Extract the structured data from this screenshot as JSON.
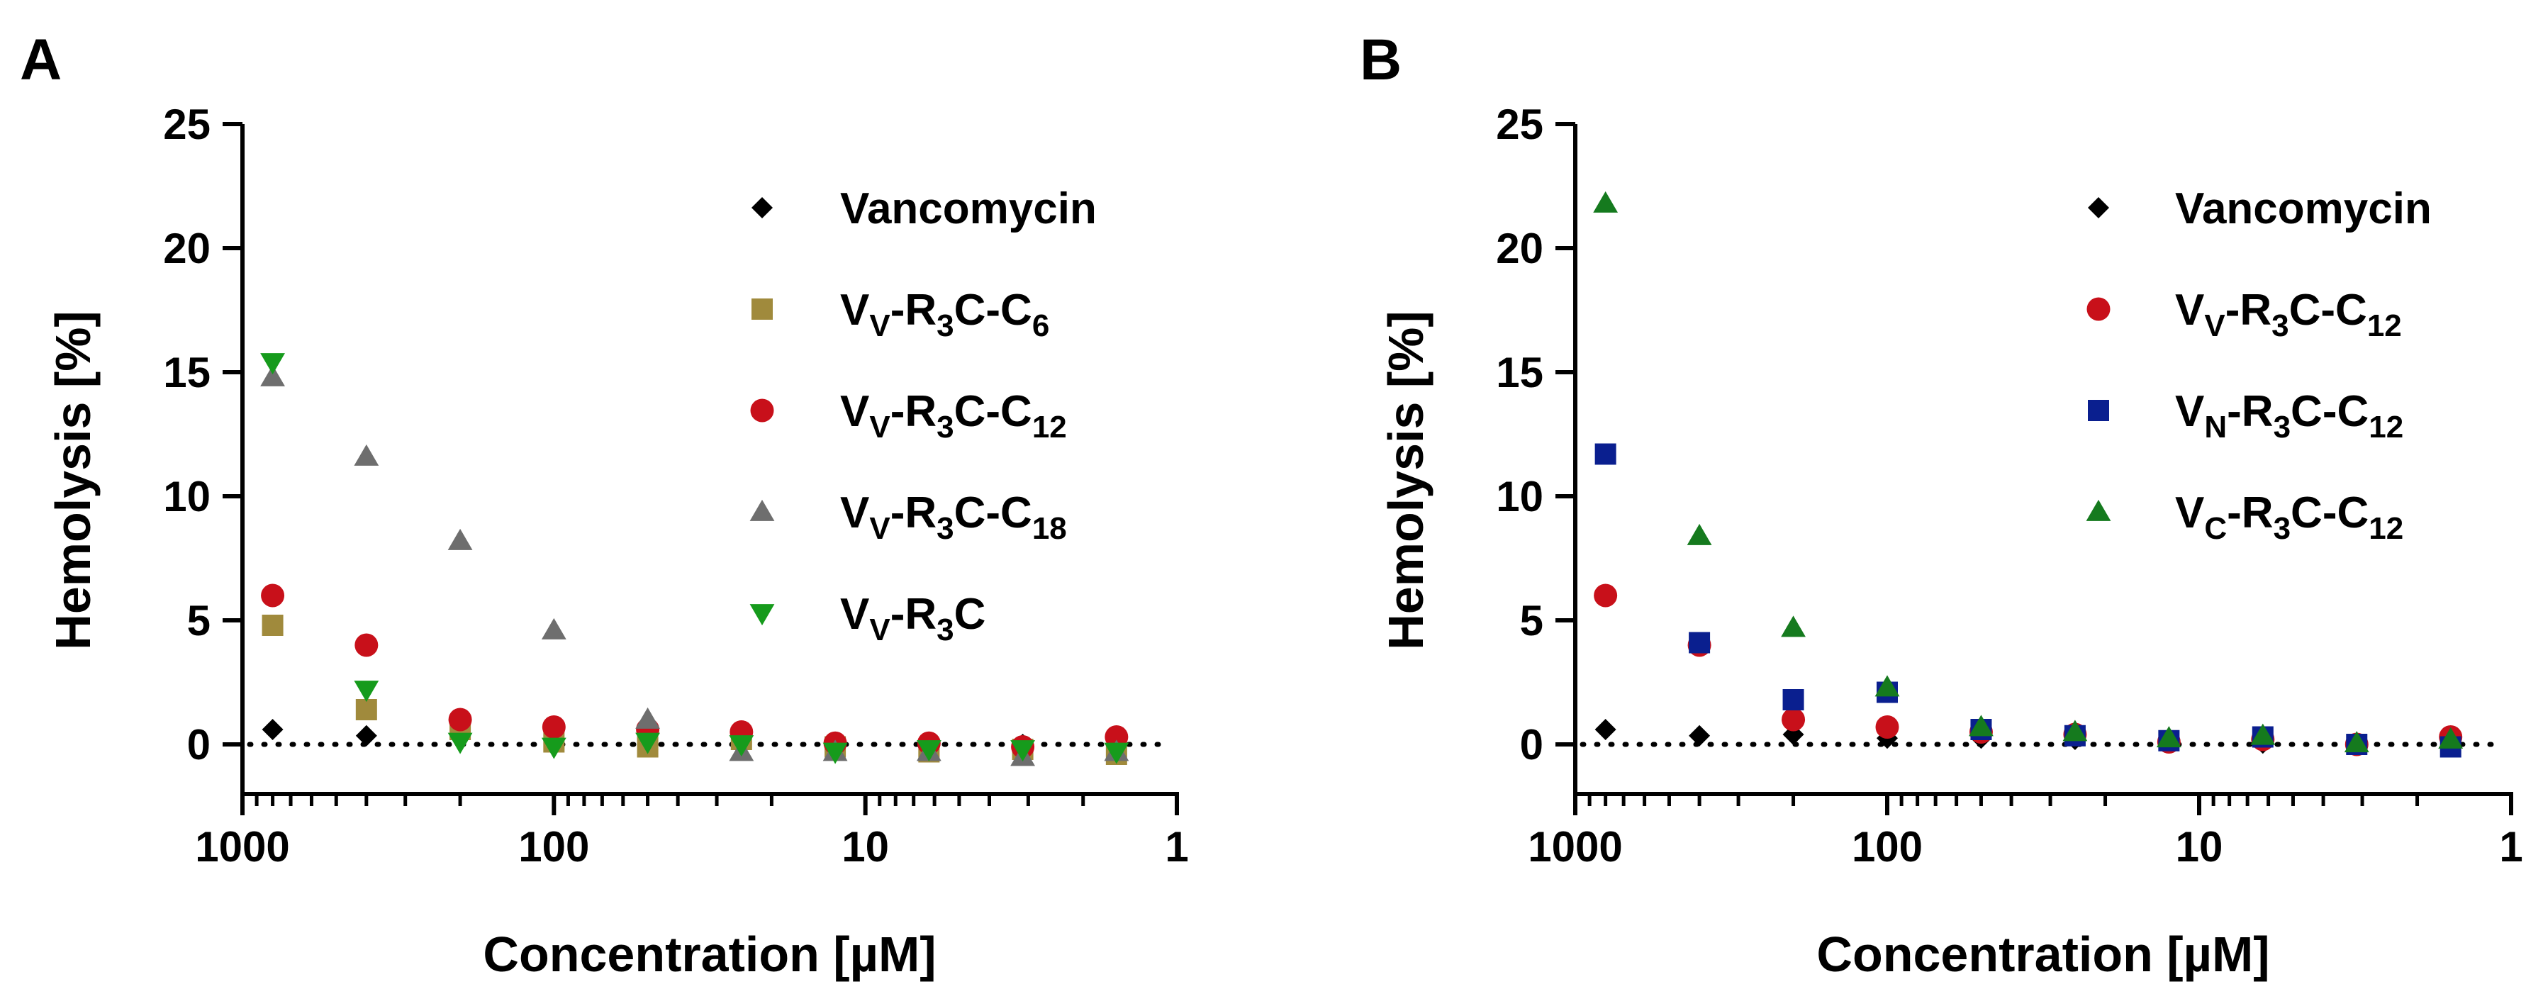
{
  "figure": {
    "title": ""
  },
  "chart_data": [
    {
      "panel": "A",
      "type": "scatter",
      "xlabel": "Concentration [µM]",
      "ylabel": "Hemolysis [%]",
      "xscale": "log",
      "xaxis_reversed": true,
      "xlim": [
        1000,
        1
      ],
      "ylim": [
        -2,
        25
      ],
      "xticks": [
        "1000",
        "100",
        "10",
        "1"
      ],
      "yticks": [
        "0",
        "5",
        "10",
        "15",
        "20",
        "25"
      ],
      "reference_line": {
        "y": 0,
        "style": "dotted"
      },
      "legend_position": "top-right",
      "x": [
        800,
        400,
        200,
        100,
        50,
        25,
        12.5,
        6.25,
        3.125,
        1.5625
      ],
      "series": [
        {
          "name": "Vancomycin",
          "parts": [
            [
              "V",
              ""
            ],
            [
              "ancomycin",
              ""
            ]
          ],
          "marker": "diamond",
          "color": "#000000",
          "values": [
            0.6,
            0.35,
            0.3,
            0.2,
            0.15,
            0.1,
            0.05,
            0.05,
            0.0,
            -0.05
          ]
        },
        {
          "name": "VV-R3C-C6",
          "parts": [
            [
              "V",
              ""
            ],
            [
              "V",
              "sub"
            ],
            [
              "-R",
              ""
            ],
            [
              "3",
              "sub"
            ],
            [
              "C-C",
              ""
            ],
            [
              "6",
              "sub"
            ]
          ],
          "marker": "square",
          "color": "#A08A3C",
          "values": [
            4.8,
            1.4,
            0.6,
            0.1,
            -0.1,
            0.2,
            -0.1,
            -0.3,
            -0.2,
            -0.4
          ]
        },
        {
          "name": "VV-R3C-C12",
          "parts": [
            [
              "V",
              ""
            ],
            [
              "V",
              "sub"
            ],
            [
              "-R",
              ""
            ],
            [
              "3",
              "sub"
            ],
            [
              "C-C",
              ""
            ],
            [
              "12",
              "sub"
            ]
          ],
          "marker": "circle",
          "color": "#C8101A",
          "values": [
            6.0,
            4.0,
            1.0,
            0.7,
            0.6,
            0.5,
            0.05,
            0.05,
            -0.1,
            0.3
          ]
        },
        {
          "name": "VV-R3C-C18",
          "parts": [
            [
              "V",
              ""
            ],
            [
              "V",
              "sub"
            ],
            [
              "-R",
              ""
            ],
            [
              "3",
              "sub"
            ],
            [
              "C-C",
              ""
            ],
            [
              "18",
              "sub"
            ]
          ],
          "marker": "triangle-up",
          "color": "#6E6E6E",
          "values": [
            14.8,
            11.6,
            8.2,
            4.6,
            1.0,
            -0.3,
            -0.3,
            -0.3,
            -0.5,
            -0.3
          ]
        },
        {
          "name": "VV-R3C",
          "parts": [
            [
              "V",
              ""
            ],
            [
              "V",
              "sub"
            ],
            [
              "-R",
              ""
            ],
            [
              "3",
              "sub"
            ],
            [
              "C",
              ""
            ]
          ],
          "marker": "triangle-down",
          "color": "#169B1C",
          "values": [
            15.4,
            2.2,
            0.1,
            -0.1,
            0.1,
            0.0,
            -0.3,
            -0.2,
            -0.2,
            -0.3
          ]
        }
      ]
    },
    {
      "panel": "B",
      "type": "scatter",
      "xlabel": "Concentration [µM]",
      "ylabel": "Hemolysis [%]",
      "xscale": "log",
      "xaxis_reversed": true,
      "xlim": [
        1000,
        1
      ],
      "ylim": [
        -2,
        25
      ],
      "xticks": [
        "1000",
        "100",
        "10",
        "1"
      ],
      "yticks": [
        "0",
        "5",
        "10",
        "15",
        "20",
        "25"
      ],
      "reference_line": {
        "y": 0,
        "style": "dotted"
      },
      "legend_position": "top-right",
      "x": [
        800,
        400,
        200,
        100,
        50,
        25,
        12.5,
        6.25,
        3.125,
        1.5625
      ],
      "series": [
        {
          "name": "Vancomycin",
          "parts": [
            [
              "V",
              ""
            ],
            [
              "ancomycin",
              ""
            ]
          ],
          "marker": "diamond",
          "color": "#000000",
          "values": [
            0.6,
            0.35,
            0.4,
            0.25,
            0.25,
            0.2,
            0.1,
            0.05,
            0.0,
            -0.05
          ]
        },
        {
          "name": "VV-R3C-C12",
          "parts": [
            [
              "V",
              ""
            ],
            [
              "V",
              "sub"
            ],
            [
              "-R",
              ""
            ],
            [
              "3",
              "sub"
            ],
            [
              "C-C",
              ""
            ],
            [
              "12",
              "sub"
            ]
          ],
          "marker": "circle",
          "color": "#C8101A",
          "values": [
            6.0,
            4.0,
            1.0,
            0.7,
            0.5,
            0.4,
            0.1,
            0.2,
            0.0,
            0.3
          ]
        },
        {
          "name": "VN-R3C-C12",
          "parts": [
            [
              "V",
              ""
            ],
            [
              "N",
              "sub"
            ],
            [
              "-R",
              ""
            ],
            [
              "3",
              "sub"
            ],
            [
              "C-C",
              ""
            ],
            [
              "12",
              "sub"
            ]
          ],
          "marker": "square",
          "color": "#0A1F8F",
          "values": [
            11.7,
            4.1,
            1.8,
            2.1,
            0.6,
            0.35,
            0.15,
            0.3,
            0.0,
            -0.1
          ]
        },
        {
          "name": "VC-R3C-C12",
          "parts": [
            [
              "V",
              ""
            ],
            [
              "C",
              "sub"
            ],
            [
              "-R",
              ""
            ],
            [
              "3",
              "sub"
            ],
            [
              "C-C",
              ""
            ],
            [
              "12",
              "sub"
            ]
          ],
          "marker": "triangle-up",
          "color": "#157A1E",
          "values": [
            21.8,
            8.4,
            4.7,
            2.3,
            0.7,
            0.5,
            0.25,
            0.35,
            0.05,
            0.2
          ]
        }
      ]
    }
  ]
}
